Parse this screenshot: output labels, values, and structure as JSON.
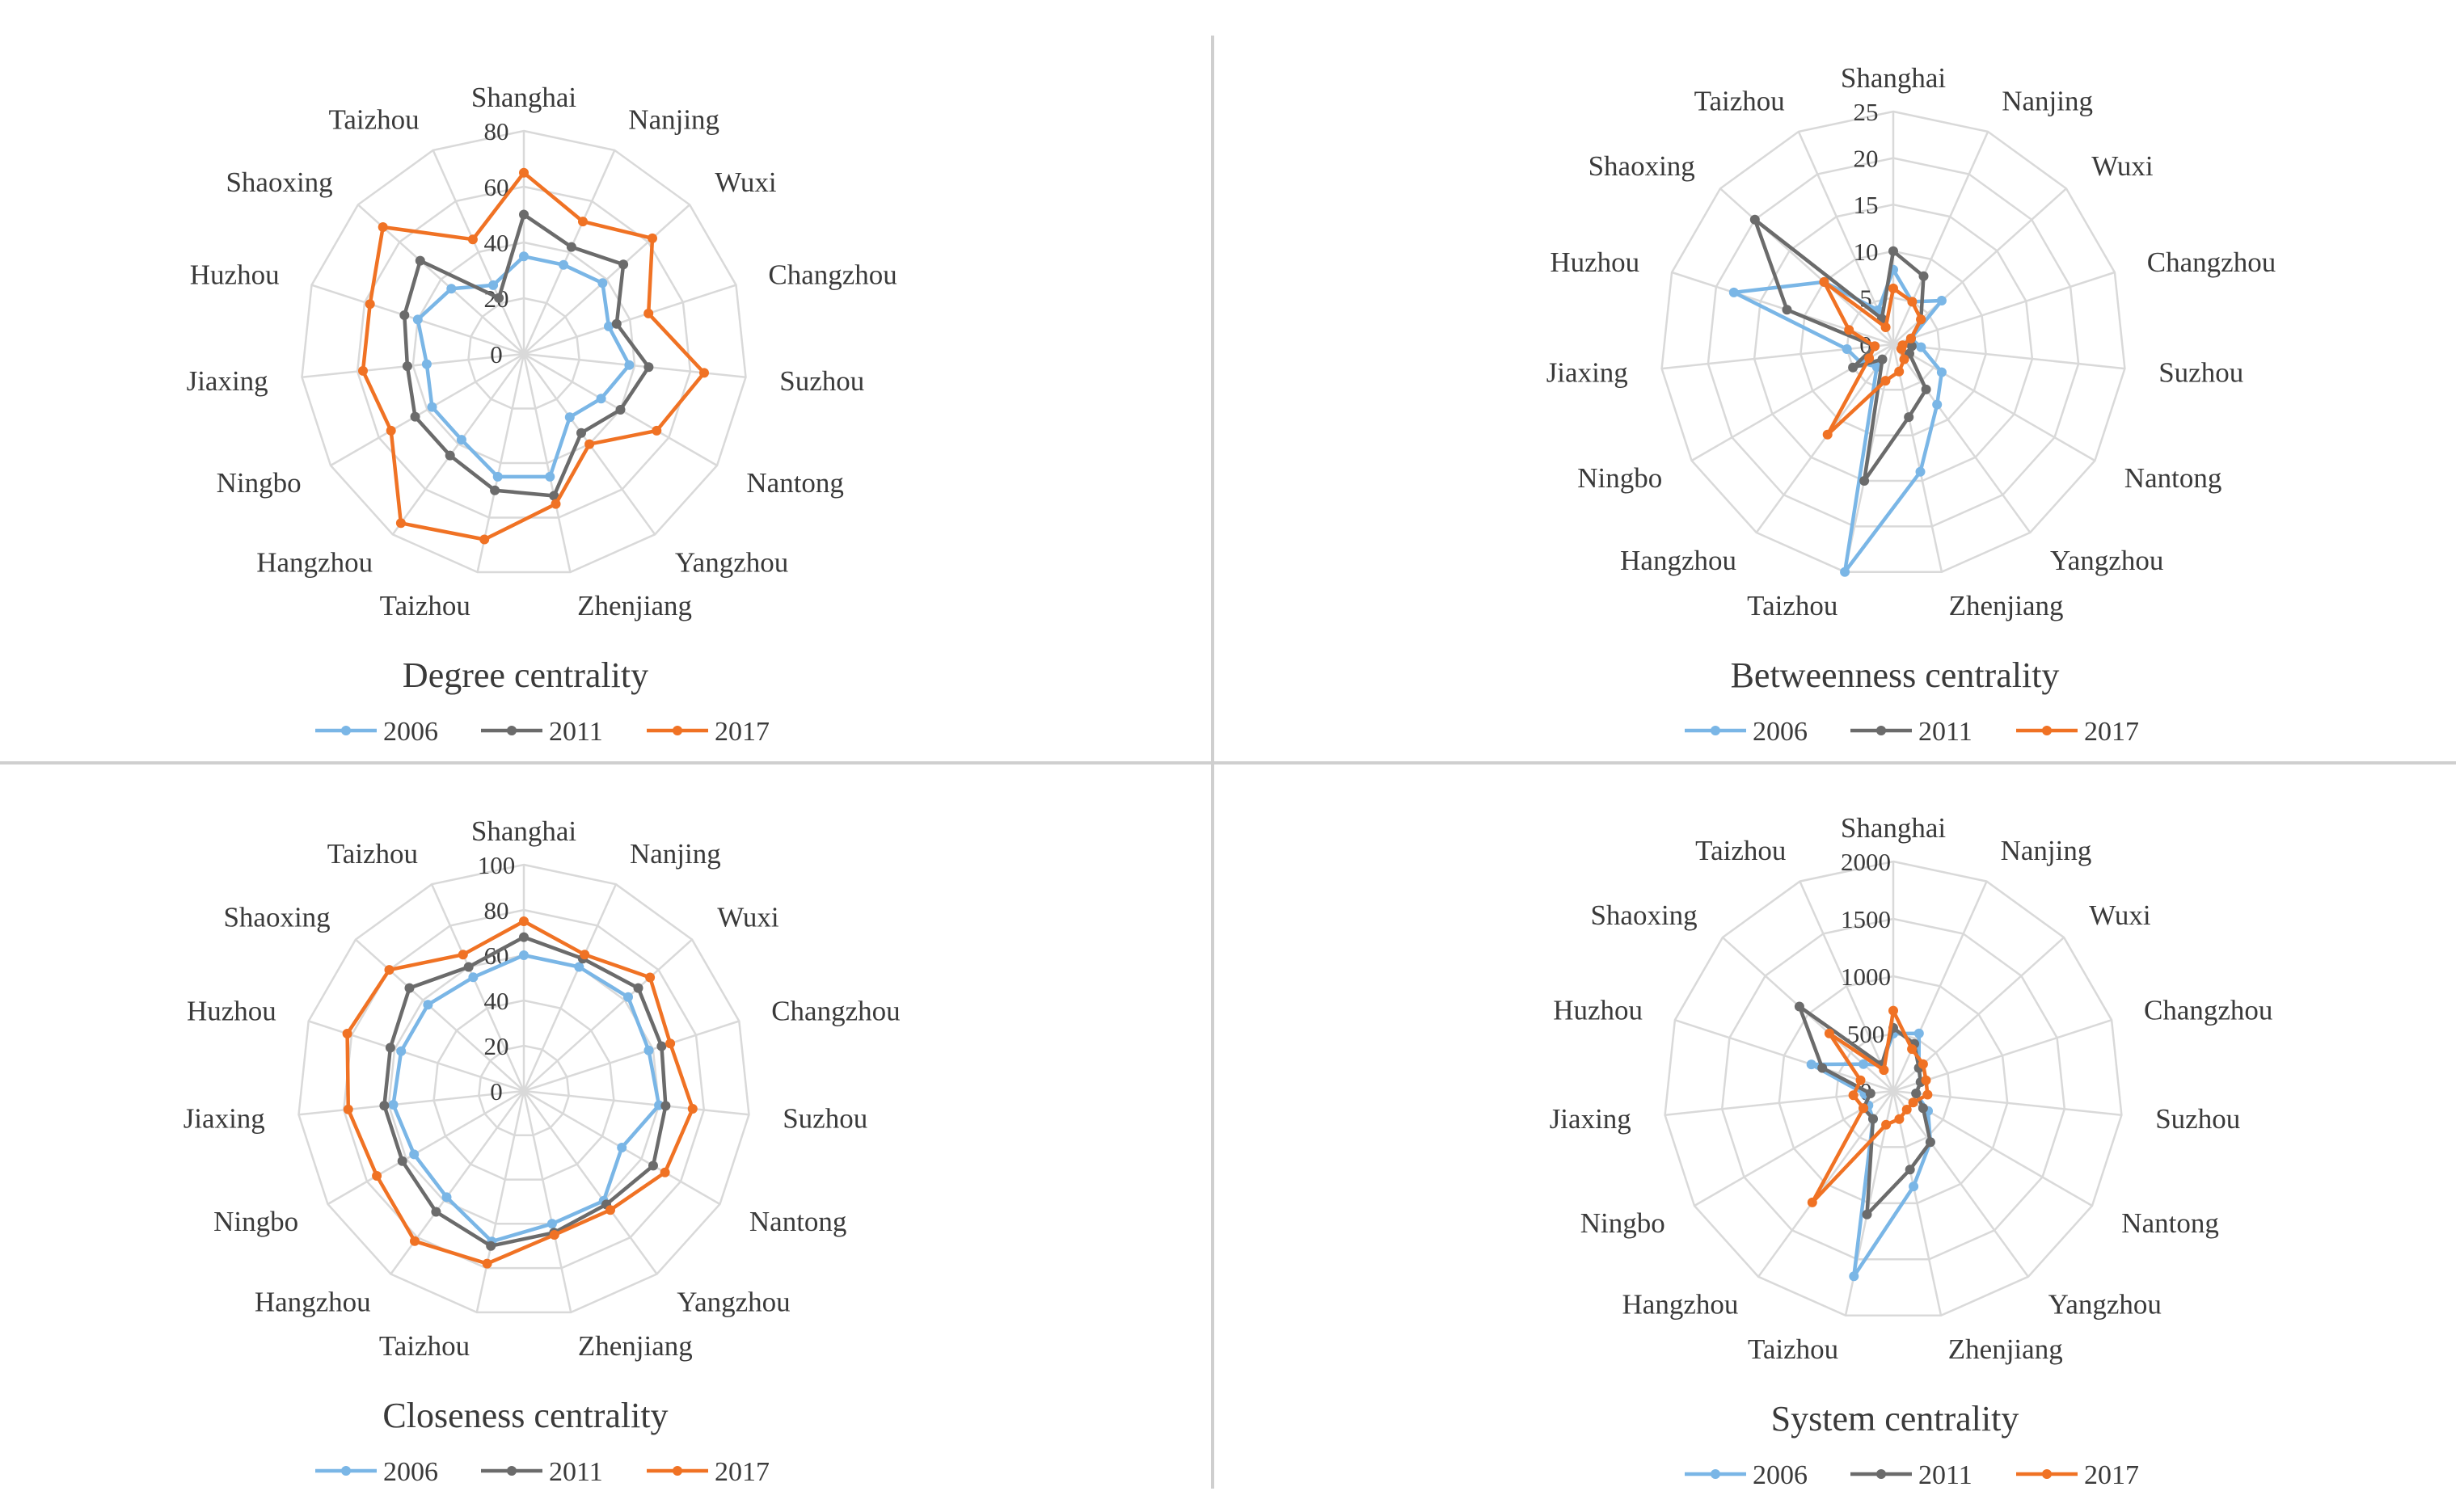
{
  "figure": {
    "colors": {
      "2006": "#7ab6e6",
      "2011": "#6b6b6b",
      "2017": "#f07224",
      "grid": "#d9d9d9"
    }
  },
  "chart_data": [
    {
      "type": "radar",
      "title": "Degree centrality",
      "categories": [
        "Shanghai",
        "Nanjing",
        "Wuxi",
        "Changzhou",
        "Suzhou",
        "Nantong",
        "Yangzhou",
        "Zhenjiang",
        "Taizhou",
        "Hangzhou",
        "Ningbo",
        "Jiaxing",
        "Huzhou",
        "Shaoxing",
        "Taizhou"
      ],
      "rlim": [
        0,
        80
      ],
      "ticks": [
        "0",
        "20",
        "40",
        "60",
        "80"
      ],
      "legend_position": "bottom",
      "series": [
        {
          "name": "2006",
          "color": "#7ab6e6",
          "values": [
            35,
            35,
            38,
            32,
            38,
            32,
            28,
            45,
            45,
            38,
            38,
            35,
            40,
            35,
            27
          ]
        },
        {
          "name": "2011",
          "color": "#6b6b6b",
          "values": [
            50,
            42,
            48,
            35,
            45,
            40,
            35,
            52,
            50,
            45,
            45,
            42,
            45,
            50,
            22
          ]
        },
        {
          "name": "2017",
          "color": "#f07224",
          "values": [
            65,
            52,
            62,
            47,
            65,
            55,
            40,
            55,
            68,
            75,
            55,
            58,
            58,
            68,
            45
          ]
        }
      ]
    },
    {
      "type": "radar",
      "title": "Betweenness centrality",
      "categories": [
        "Shanghai",
        "Nanjing",
        "Wuxi",
        "Changzhou",
        "Suzhou",
        "Nantong",
        "Yangzhou",
        "Zhenjiang",
        "Taizhou",
        "Hangzhou",
        "Ningbo",
        "Jiaxing",
        "Huzhou",
        "Shaoxing",
        "Taizhou"
      ],
      "rlim": [
        0,
        25
      ],
      "ticks": [
        "0",
        "5",
        "10",
        "15",
        "20",
        "25"
      ],
      "legend_position": "bottom",
      "series": [
        {
          "name": "2006",
          "color": "#7ab6e6",
          "values": [
            8,
            5,
            7,
            2,
            3,
            6,
            8,
            14,
            25,
            3,
            4,
            5,
            18,
            10,
            4
          ]
        },
        {
          "name": "2011",
          "color": "#6b6b6b",
          "values": [
            10,
            8,
            4,
            2,
            2,
            2,
            6,
            8,
            15,
            2,
            5,
            2,
            12,
            20,
            3
          ]
        },
        {
          "name": "2017",
          "color": "#f07224",
          "values": [
            6,
            5,
            4,
            2,
            1,
            1,
            2,
            3,
            4,
            12,
            3,
            2,
            5,
            10,
            2
          ]
        }
      ]
    },
    {
      "type": "radar",
      "title": "Closeness centrality",
      "categories": [
        "Shanghai",
        "Nanjing",
        "Wuxi",
        "Changzhou",
        "Suzhou",
        "Nantong",
        "Yangzhou",
        "Zhenjiang",
        "Taizhou",
        "Hangzhou",
        "Ningbo",
        "Jiaxing",
        "Huzhou",
        "Shaoxing",
        "Taizhou"
      ],
      "rlim": [
        0,
        100
      ],
      "ticks": [
        "0",
        "20",
        "40",
        "60",
        "80",
        "100"
      ],
      "legend_position": "bottom",
      "series": [
        {
          "name": "2006",
          "color": "#7ab6e6",
          "values": [
            60,
            60,
            62,
            58,
            60,
            50,
            60,
            60,
            68,
            58,
            56,
            58,
            57,
            57,
            55
          ]
        },
        {
          "name": "2011",
          "color": "#6b6b6b",
          "values": [
            68,
            64,
            68,
            64,
            63,
            66,
            62,
            64,
            70,
            66,
            62,
            62,
            62,
            68,
            60
          ]
        },
        {
          "name": "2017",
          "color": "#f07224",
          "values": [
            75,
            66,
            75,
            68,
            75,
            72,
            65,
            65,
            78,
            82,
            75,
            78,
            82,
            80,
            66
          ]
        }
      ]
    },
    {
      "type": "radar",
      "title": "System centrality",
      "categories": [
        "Shanghai",
        "Nanjing",
        "Wuxi",
        "Changzhou",
        "Suzhou",
        "Nantong",
        "Yangzhou",
        "Zhenjiang",
        "Taizhou",
        "Hangzhou",
        "Ningbo",
        "Jiaxing",
        "Huzhou",
        "Shaoxing",
        "Taizhou"
      ],
      "rlim": [
        0,
        2000
      ],
      "ticks": [
        "0",
        "500",
        "1000",
        "1500",
        "2000"
      ],
      "legend_position": "bottom",
      "series": [
        {
          "name": "2006",
          "color": "#7ab6e6",
          "values": [
            500,
            550,
            300,
            250,
            200,
            350,
            550,
            850,
            1650,
            300,
            250,
            250,
            750,
            350,
            250
          ]
        },
        {
          "name": "2011",
          "color": "#6b6b6b",
          "values": [
            550,
            450,
            300,
            250,
            200,
            300,
            550,
            700,
            1100,
            300,
            300,
            200,
            650,
            1100,
            250
          ]
        },
        {
          "name": "2017",
          "color": "#f07224",
          "values": [
            700,
            400,
            350,
            300,
            300,
            200,
            200,
            250,
            300,
            1200,
            300,
            350,
            300,
            750,
            200
          ]
        }
      ]
    }
  ]
}
